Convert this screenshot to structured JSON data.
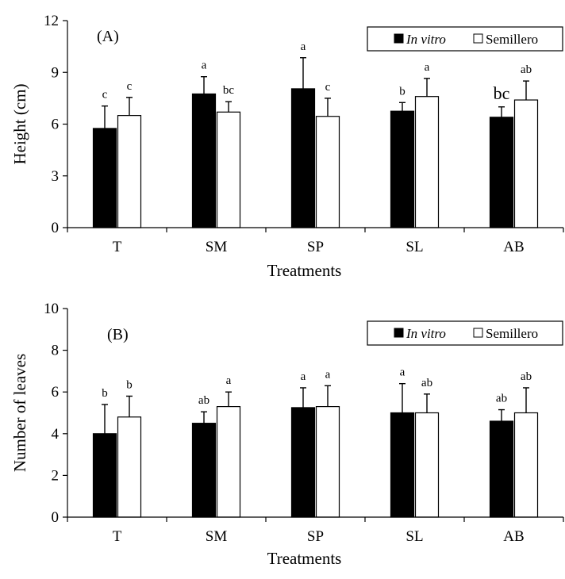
{
  "figure": {
    "colors": {
      "in_vitro": "#000000",
      "semillero": "#ffffff",
      "axis": "#000000"
    }
  },
  "chart_data": [
    {
      "type": "bar",
      "panel_label": "(A)",
      "xlabel": "Treatments",
      "ylabel": "Height (cm)",
      "ylim": [
        0,
        12
      ],
      "yticks": [
        "0",
        "3",
        "6",
        "9",
        "12"
      ],
      "categories": [
        "T",
        "SM",
        "SP",
        "SL",
        "AB"
      ],
      "legend": {
        "placement": "top-right",
        "entries": [
          "In vitro",
          "Semillero"
        ]
      },
      "series": [
        {
          "name": "In vitro",
          "values": [
            5.75,
            7.75,
            8.05,
            6.75,
            6.4
          ],
          "errors": [
            1.3,
            1.0,
            1.8,
            0.5,
            0.6
          ],
          "letters": [
            "c",
            "a",
            "a",
            "b",
            "bc"
          ]
        },
        {
          "name": "Semillero",
          "values": [
            6.5,
            6.7,
            6.45,
            7.6,
            7.4
          ],
          "errors": [
            1.05,
            0.6,
            1.05,
            1.05,
            1.1
          ],
          "letters": [
            "c",
            "bc",
            "c",
            "a",
            "ab"
          ]
        }
      ],
      "grid": false
    },
    {
      "type": "bar",
      "panel_label": "(B)",
      "xlabel": "Treatments",
      "ylabel": "Number of leaves",
      "ylim": [
        0,
        10
      ],
      "yticks": [
        "0",
        "2",
        "4",
        "6",
        "8",
        "10"
      ],
      "categories": [
        "T",
        "SM",
        "SP",
        "SL",
        "AB"
      ],
      "legend": {
        "placement": "top-right",
        "entries": [
          "In vitro",
          "Semillero"
        ]
      },
      "series": [
        {
          "name": "In vitro",
          "values": [
            4.0,
            4.5,
            5.25,
            5.0,
            4.6
          ],
          "errors": [
            1.4,
            0.55,
            0.95,
            1.4,
            0.55
          ],
          "letters": [
            "b",
            "ab",
            "a",
            "a",
            "ab"
          ]
        },
        {
          "name": "Semillero",
          "values": [
            4.8,
            5.3,
            5.3,
            5.0,
            5.0
          ],
          "errors": [
            1.0,
            0.7,
            1.0,
            0.9,
            1.2
          ],
          "letters": [
            "b",
            "a",
            "a",
            "ab",
            "ab"
          ]
        }
      ],
      "grid": false
    }
  ]
}
